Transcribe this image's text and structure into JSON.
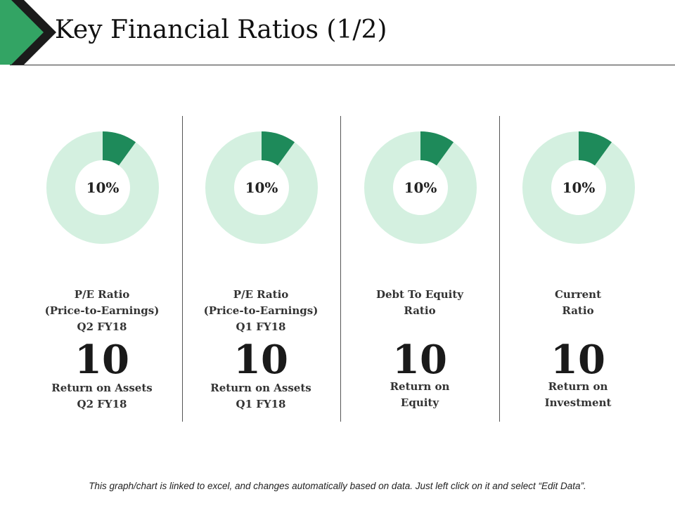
{
  "slide": {
    "title": "Key Financial Ratios (1/2)",
    "footer": "This graph/chart is linked to excel, and changes automatically based on data.  Just left click on it and select “Edit Data”."
  },
  "colors": {
    "arrow_green": "#33a464",
    "arrow_dark": "#1b1b1b",
    "donut_fill": "#1e8a5a",
    "donut_track": "#d4f0e0"
  },
  "chart_data": [
    {
      "type": "pie",
      "center_label": "10%",
      "slices": [
        {
          "value": 10
        },
        {
          "value": 90
        }
      ],
      "label_lines": [
        "P/E Ratio",
        "(Price-to-Earnings)",
        "Q2 FY18"
      ],
      "big_value": "10",
      "sub_lines": [
        "Return on Assets",
        "Q2 FY18"
      ]
    },
    {
      "type": "pie",
      "center_label": "10%",
      "slices": [
        {
          "value": 10
        },
        {
          "value": 90
        }
      ],
      "label_lines": [
        "P/E Ratio",
        "(Price-to-Earnings)",
        "Q1 FY18"
      ],
      "big_value": "10",
      "sub_lines": [
        "Return on Assets",
        "Q1 FY18"
      ]
    },
    {
      "type": "pie",
      "center_label": "10%",
      "slices": [
        {
          "value": 10
        },
        {
          "value": 90
        }
      ],
      "label_lines": [
        "Debt To Equity",
        "Ratio"
      ],
      "big_value": "10",
      "sub_lines": [
        "Return on",
        "Equity"
      ]
    },
    {
      "type": "pie",
      "center_label": "10%",
      "slices": [
        {
          "value": 10
        },
        {
          "value": 90
        }
      ],
      "label_lines": [
        "Current",
        "Ratio"
      ],
      "big_value": "10",
      "sub_lines": [
        "Return on",
        "Investment"
      ]
    }
  ]
}
